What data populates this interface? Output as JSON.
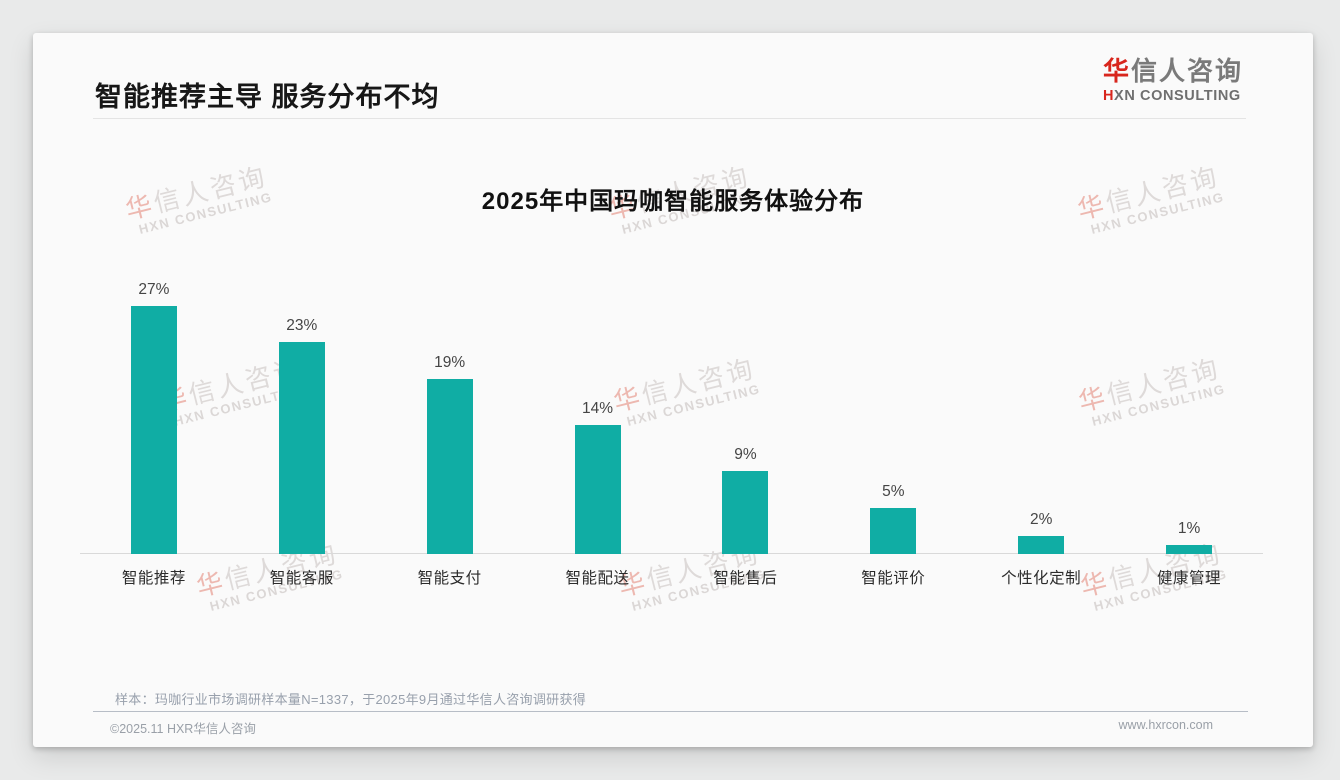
{
  "page": {
    "title": "智能推荐主导 服务分布不均",
    "footnote": "样本：玛咖行业市场调研样本量N=1337，于2025年9月通过华信人咨询调研获得",
    "copyright": "©2025.11 HXR华信人咨询",
    "website": "www.hxrcon.com"
  },
  "logo": {
    "zh_accent": "华",
    "zh_rest": "信人咨询",
    "en_accent": "H",
    "en_rest": "XN CONSULTING"
  },
  "watermark": {
    "zh_accent": "华",
    "zh_rest": "信人咨询",
    "en": "HXN CONSULTING"
  },
  "chart_data": {
    "type": "bar",
    "title": "2025年中国玛咖智能服务体验分布",
    "categories": [
      "智能推荐",
      "智能客服",
      "智能支付",
      "智能配送",
      "智能售后",
      "智能评价",
      "个性化定制",
      "健康管理"
    ],
    "values": [
      27,
      23,
      19,
      14,
      9,
      5,
      2,
      1
    ],
    "value_labels": [
      "27%",
      "23%",
      "19%",
      "14%",
      "9%",
      "5%",
      "2%",
      "1%"
    ],
    "bar_color": "#10ada4",
    "xlabel": "",
    "ylabel": "",
    "ylim": [
      0,
      30
    ],
    "grid": false,
    "legend": "none"
  }
}
